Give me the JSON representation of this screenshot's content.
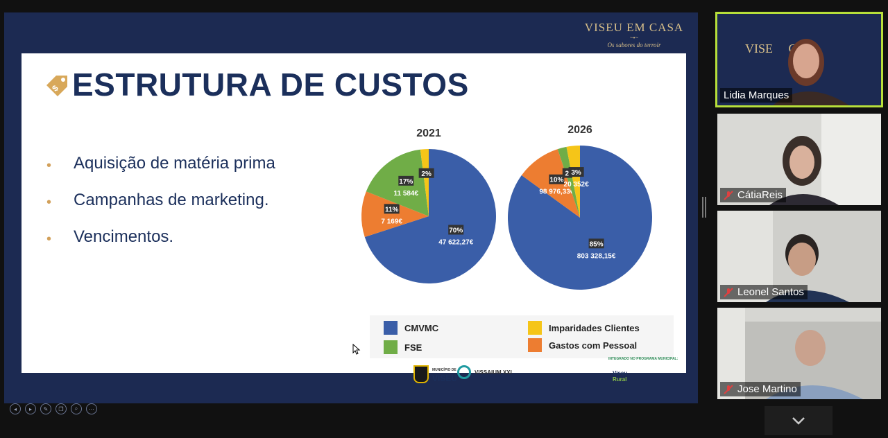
{
  "brand": {
    "name": "VISEU EM CASA",
    "ornament": "~•~",
    "tagline": "Os sabores do terroir"
  },
  "slide": {
    "title": "ESTRUTURA DE CUSTOS",
    "bullets": [
      "Aquisição de matéria prima",
      "Campanhas de marketing.",
      "Vencimentos."
    ]
  },
  "chart_data": [
    {
      "type": "pie",
      "title": "2021",
      "categories": [
        "CMVMC",
        "Gastos com Pessoal",
        "FSE",
        "Imparidades Clientes"
      ],
      "values_percent": [
        70,
        11,
        17,
        2
      ],
      "value_labels": [
        "47 622,27€",
        "7 169€",
        "11 584€",
        ""
      ],
      "percent_labels": [
        "70%",
        "11%",
        "17%",
        "2%"
      ]
    },
    {
      "type": "pie",
      "title": "2026",
      "categories": [
        "CMVMC",
        "Gastos com Pessoal",
        "FSE",
        "Imparidades Clientes"
      ],
      "values_percent": [
        85,
        10,
        2,
        3
      ],
      "value_labels": [
        "803 328,15€",
        "98 976,33€",
        "",
        "20 352€"
      ],
      "percent_labels": [
        "85%",
        "10%",
        "2%",
        "3%"
      ]
    }
  ],
  "legend": [
    {
      "label": "CMVMC",
      "color": "#3a5ea8"
    },
    {
      "label": "Imparidades Clientes",
      "color": "#f5c518"
    },
    {
      "label": "FSE",
      "color": "#70ad47"
    },
    {
      "label": "Gastos com Pessoal",
      "color": "#ed7d31"
    }
  ],
  "footer": {
    "note": "INTEGRADO NO PROGRAMA MUNICIPAL:",
    "logo_viseu_small": "MUNICÍPIO DE",
    "logo_viseu": "VISEU",
    "logo_vissaium": "VISSAIUM XXI",
    "logo_rural_1": "Viseu",
    "logo_rural_2": "Rural"
  },
  "participants": [
    {
      "name": "Lidia Marques",
      "muted": false,
      "active": true
    },
    {
      "name": "CátiaReis",
      "muted": true,
      "active": false
    },
    {
      "name": "Leonel Santos",
      "muted": true,
      "active": false
    },
    {
      "name": "Jose Martino",
      "muted": true,
      "active": false
    }
  ],
  "video_bg_text": "VISE     CASA",
  "icons": {
    "tag": "price-tag-icon",
    "mic_off": "mic-off-icon",
    "chevron": "chevron-down-icon"
  }
}
